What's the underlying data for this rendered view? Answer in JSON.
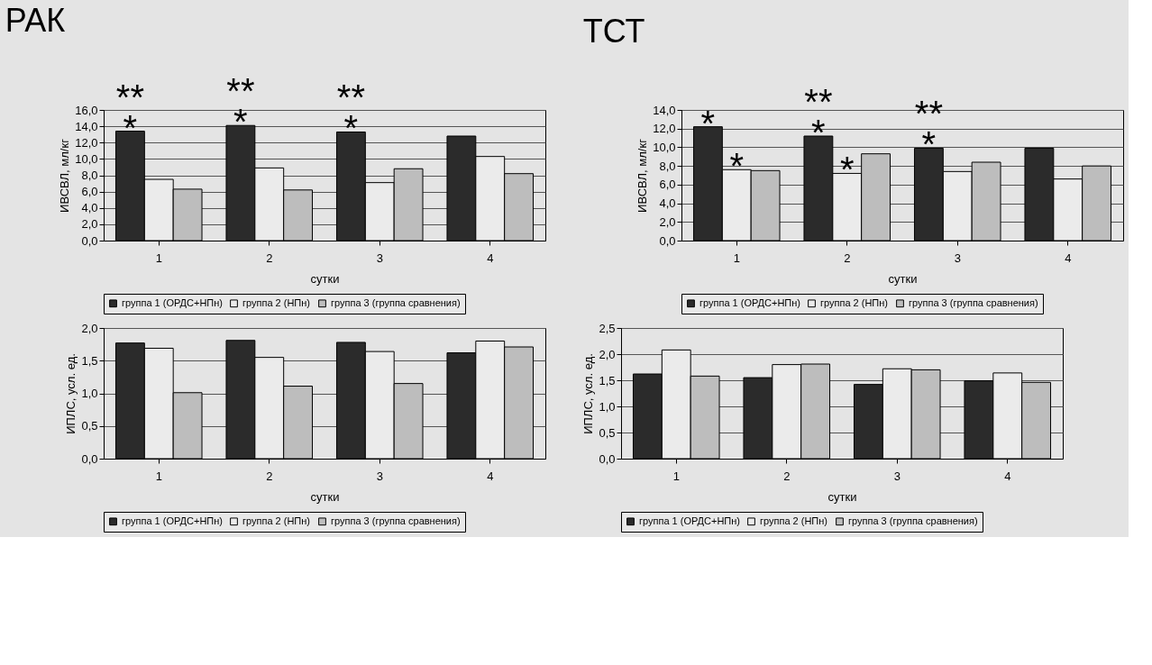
{
  "chart_data": [
    {
      "type": "bar",
      "title": "РАК",
      "xlabel": "сутки",
      "ylabel": "ИВСВЛ, мл/кг",
      "categories": [
        "1",
        "2",
        "3",
        "4"
      ],
      "series": [
        {
          "name": "группа 1 (ОРДС+НПн)",
          "color": "#2b2b2b",
          "values": [
            13.4,
            14.1,
            13.3,
            12.8
          ]
        },
        {
          "name": "группа 2 (НПн)",
          "color": "#ebebeb",
          "values": [
            7.5,
            8.9,
            7.1,
            10.3
          ]
        },
        {
          "name": "группа 3 (группа сравнения)",
          "color": "#bdbdbd",
          "values": [
            6.3,
            6.2,
            8.8,
            8.2
          ]
        }
      ],
      "ylim": [
        0,
        16
      ],
      "yticks": [
        {
          "value": 0,
          "label": "0,0"
        },
        {
          "value": 2,
          "label": "2,0"
        },
        {
          "value": 4,
          "label": "4,0"
        },
        {
          "value": 6,
          "label": "6,0"
        },
        {
          "value": 8,
          "label": "8,0"
        },
        {
          "value": 10,
          "label": "10,0"
        },
        {
          "value": 12,
          "label": "12,0"
        },
        {
          "value": 14,
          "label": "14,0"
        },
        {
          "value": 16,
          "label": "16,0"
        }
      ],
      "annotations": [
        "*",
        "**",
        "*",
        "**",
        "*",
        "**"
      ],
      "grid": "y",
      "legend": "bottom"
    },
    {
      "type": "bar",
      "title": "ТСТ",
      "xlabel": "сутки",
      "ylabel": "ИВСВЛ, мл/кг",
      "categories": [
        "1",
        "2",
        "3",
        "4"
      ],
      "series": [
        {
          "name": "группа 1 (ОРДС+НПн)",
          "color": "#2b2b2b",
          "values": [
            12.2,
            11.2,
            9.9,
            9.9
          ]
        },
        {
          "name": "группа 2 (НПн)",
          "color": "#ebebeb",
          "values": [
            7.6,
            7.2,
            7.4,
            6.6
          ]
        },
        {
          "name": "группа 3 (группа сравнения)",
          "color": "#bdbdbd",
          "values": [
            7.5,
            9.3,
            8.4,
            8.0
          ]
        }
      ],
      "ylim": [
        0,
        14
      ],
      "yticks": [
        {
          "value": 0,
          "label": "0,0"
        },
        {
          "value": 2,
          "label": "2,0"
        },
        {
          "value": 4,
          "label": "4,0"
        },
        {
          "value": 6,
          "label": "6,0"
        },
        {
          "value": 8,
          "label": "8,0"
        },
        {
          "value": 10,
          "label": "10,0"
        },
        {
          "value": 12,
          "label": "12,0"
        },
        {
          "value": 14,
          "label": "14,0"
        }
      ],
      "annotations": [
        "*",
        {
          "text": "*",
          "x": "1",
          "y": 7.6
        },
        "*",
        "**",
        {
          "text": "*",
          "x": "2",
          "y": 7.2
        },
        "*",
        "**"
      ],
      "grid": "y",
      "legend": "bottom"
    },
    {
      "type": "bar",
      "xlabel": "сутки",
      "ylabel": "ИПЛС, усл. ед.",
      "categories": [
        "1",
        "2",
        "3",
        "4"
      ],
      "series": [
        {
          "name": "группа 1 (ОРДС+НПн)",
          "color": "#2b2b2b",
          "values": [
            1.77,
            1.81,
            1.78,
            1.62
          ]
        },
        {
          "name": "группа 2 (НПн)",
          "color": "#ebebeb",
          "values": [
            1.69,
            1.55,
            1.64,
            1.8
          ]
        },
        {
          "name": "группа 3 (группа сравнения)",
          "color": "#bdbdbd",
          "values": [
            1.01,
            1.11,
            1.15,
            1.71
          ]
        }
      ],
      "ylim": [
        0,
        2
      ],
      "yticks": [
        {
          "value": 0,
          "label": "0,0"
        },
        {
          "value": 0.5,
          "label": "0,5"
        },
        {
          "value": 1,
          "label": "1,0"
        },
        {
          "value": 1.5,
          "label": "1,5"
        },
        {
          "value": 2,
          "label": "2,0"
        }
      ],
      "grid": "y",
      "legend": "bottom"
    },
    {
      "type": "bar",
      "xlabel": "сутки",
      "ylabel": "ИПЛС, усл. ед.",
      "categories": [
        "1",
        "2",
        "3",
        "4"
      ],
      "series": [
        {
          "name": "группа 1 (ОРДС+НПн)",
          "color": "#2b2b2b",
          "values": [
            1.62,
            1.55,
            1.42,
            1.49
          ]
        },
        {
          "name": "группа 2 (НПн)",
          "color": "#ebebeb",
          "values": [
            2.08,
            1.8,
            1.72,
            1.64
          ]
        },
        {
          "name": "группа 3 (группа сравнения)",
          "color": "#bdbdbd",
          "values": [
            1.58,
            1.81,
            1.7,
            1.46
          ]
        }
      ],
      "ylim": [
        0,
        2.5
      ],
      "yticks": [
        {
          "value": 0,
          "label": "0,0"
        },
        {
          "value": 0.5,
          "label": "0,5"
        },
        {
          "value": 1,
          "label": "1,0"
        },
        {
          "value": 1.5,
          "label": "1,5"
        },
        {
          "value": 2,
          "label": "2,0"
        },
        {
          "value": 2.5,
          "label": "2,5"
        }
      ],
      "grid": "y",
      "legend": "bottom"
    }
  ]
}
